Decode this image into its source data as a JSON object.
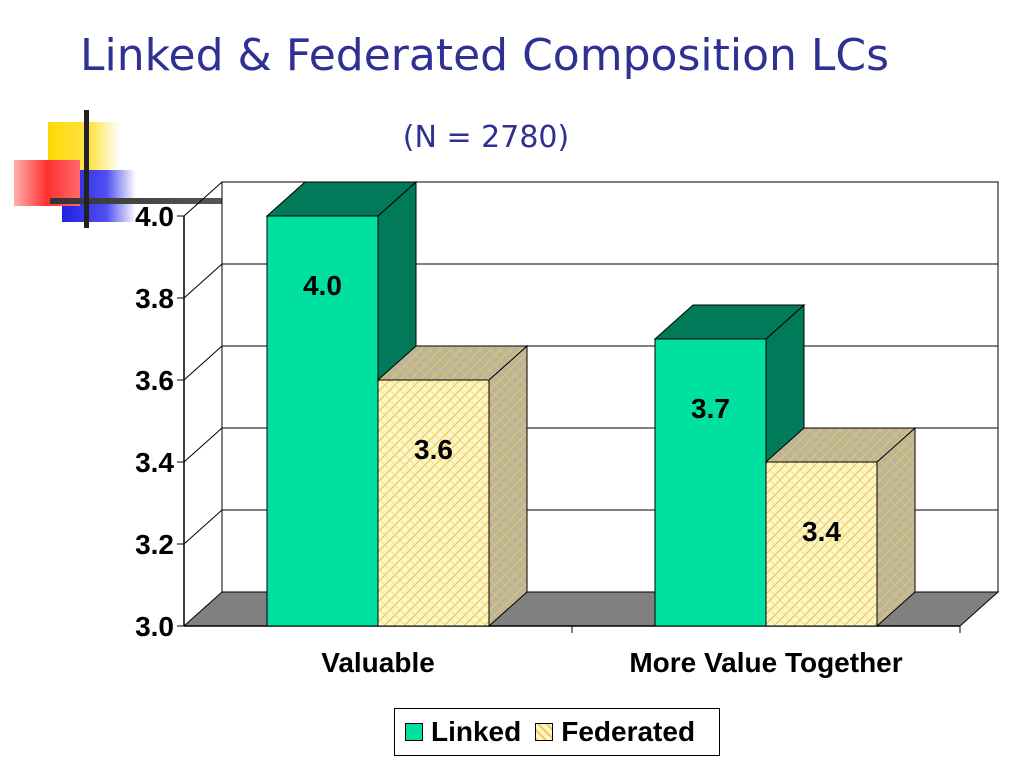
{
  "slide": {
    "title": "Linked & Federated Composition LCs",
    "subtitle": "(N = 2780)"
  },
  "colors": {
    "title": "#2e3192",
    "linked_front": "#00e0a0",
    "linked_side": "#007a58",
    "federated_front": "#fff6c8",
    "federated_pattern": "#e8d060",
    "floor": "#808080"
  },
  "chart_data": {
    "type": "bar",
    "categories": [
      "Valuable",
      "More Value Together"
    ],
    "series": [
      {
        "name": "Linked",
        "values": [
          4.0,
          3.7
        ],
        "labels": [
          "4.0",
          "3.7"
        ]
      },
      {
        "name": "Federated",
        "values": [
          3.6,
          3.4
        ],
        "labels": [
          "3.6",
          "3.4"
        ]
      }
    ],
    "ylim": [
      3.0,
      4.0
    ],
    "yticks": [
      "3.0",
      "3.2",
      "3.4",
      "3.6",
      "3.8",
      "4.0"
    ],
    "grid": true,
    "three_d": true,
    "legend": "bottom"
  }
}
